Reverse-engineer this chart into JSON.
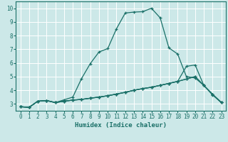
{
  "xlabel": "Humidex (Indice chaleur)",
  "xlim": [
    -0.5,
    23.5
  ],
  "ylim": [
    2.5,
    10.5
  ],
  "xticks": [
    0,
    1,
    2,
    3,
    4,
    5,
    6,
    7,
    8,
    9,
    10,
    11,
    12,
    13,
    14,
    15,
    16,
    17,
    18,
    19,
    20,
    21,
    22,
    23
  ],
  "yticks": [
    3,
    4,
    5,
    6,
    7,
    8,
    9,
    10
  ],
  "background_color": "#cce8e8",
  "grid_color": "#ffffff",
  "line_color": "#1a7068",
  "line1_y": [
    2.8,
    2.75,
    3.2,
    3.25,
    3.1,
    3.3,
    3.5,
    4.85,
    5.95,
    6.8,
    7.05,
    8.5,
    9.65,
    9.72,
    9.75,
    10.0,
    9.3,
    7.1,
    6.65,
    5.0,
    4.9,
    4.35,
    3.65,
    3.1
  ],
  "line2_y": [
    2.8,
    2.75,
    3.2,
    3.25,
    3.1,
    3.2,
    3.28,
    3.33,
    3.42,
    3.5,
    3.6,
    3.72,
    3.85,
    4.0,
    4.12,
    4.22,
    4.36,
    4.5,
    4.65,
    5.75,
    5.85,
    4.35,
    3.7,
    3.1
  ],
  "line3_y": [
    2.8,
    2.75,
    3.2,
    3.25,
    3.1,
    3.2,
    3.28,
    3.33,
    3.42,
    3.5,
    3.6,
    3.72,
    3.85,
    4.0,
    4.12,
    4.22,
    4.36,
    4.5,
    4.65,
    4.82,
    5.0,
    4.35,
    3.7,
    3.1
  ],
  "line4_y": [
    2.8,
    2.75,
    3.2,
    3.25,
    3.1,
    3.2,
    3.28,
    3.33,
    3.42,
    3.5,
    3.6,
    3.72,
    3.85,
    4.0,
    4.12,
    4.22,
    4.36,
    4.5,
    4.65,
    4.82,
    5.0,
    4.35,
    3.7,
    3.1
  ],
  "tick_fontsize": 5.5,
  "xlabel_fontsize": 6.5
}
